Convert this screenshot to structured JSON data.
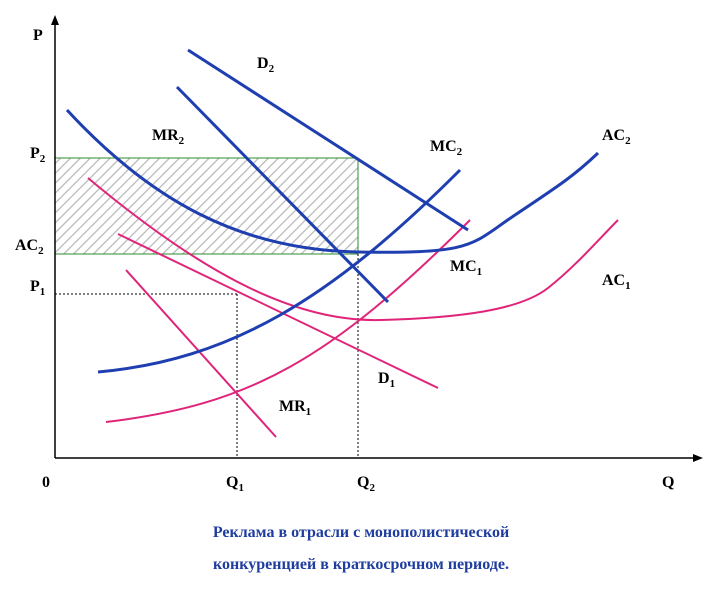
{
  "axes": {
    "price_label": "P",
    "quantity_label": "Q",
    "origin_label": "0"
  },
  "price_ticks": {
    "p2": {
      "base": "P",
      "sub": "2"
    },
    "ac2": {
      "base": "AC",
      "sub": "2"
    },
    "p1": {
      "base": "P",
      "sub": "1"
    }
  },
  "quantity_ticks": {
    "q1": {
      "base": "Q",
      "sub": "1"
    },
    "q2": {
      "base": "Q",
      "sub": "2"
    }
  },
  "curves": {
    "d2": {
      "base": "D",
      "sub": "2"
    },
    "mr2": {
      "base": "MR",
      "sub": "2"
    },
    "mc2": {
      "base": "MC",
      "sub": "2"
    },
    "ac2": {
      "base": "AC",
      "sub": "2"
    },
    "mc1": {
      "base": "MC",
      "sub": "1"
    },
    "ac1": {
      "base": "AC",
      "sub": "1"
    },
    "d1": {
      "base": "D",
      "sub": "1"
    },
    "mr1": {
      "base": "MR",
      "sub": "1"
    }
  },
  "caption": {
    "line1": "Реклама в отрасли с монополистической",
    "line2": "конкуренцией в краткосрочном периоде."
  },
  "colors": {
    "blue_curves": "#1f3fb0",
    "pink_curves": "#e0247a",
    "profit_box": "#2e8b2e",
    "hatch": "#b8b8b8",
    "caption": "#1f3d9e"
  }
}
